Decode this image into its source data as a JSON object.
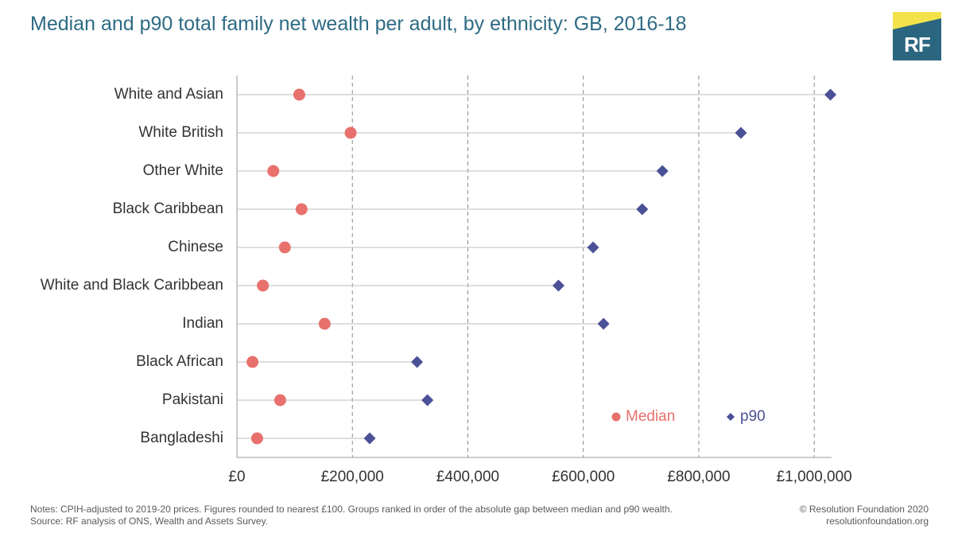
{
  "header": {
    "title": "Median and p90 total family net wealth per adult, by ethnicity: GB, 2016-18",
    "logo_text": "RF"
  },
  "colors": {
    "title": "#2e6b84",
    "median": "#e8716d",
    "p90": "#4a5196",
    "logo_bg": "#2b6680",
    "logo_accent": "#f4e24a"
  },
  "chart_data": {
    "type": "scatter",
    "categories": [
      "White and Asian",
      "White British",
      "Other White",
      "Black Caribbean",
      "Chinese",
      "White and Black Caribbean",
      "Indian",
      "Black African",
      "Pakistani",
      "Bangladeshi"
    ],
    "series": [
      {
        "name": "Median",
        "marker": "circle",
        "values": [
          108000,
          197000,
          63000,
          112000,
          83000,
          45000,
          152000,
          27000,
          75000,
          35000
        ]
      },
      {
        "name": "p90",
        "marker": "diamond",
        "values": [
          1028000,
          873000,
          737000,
          702000,
          617000,
          557000,
          635000,
          312000,
          330000,
          230000
        ]
      }
    ],
    "xlim": [
      0,
      1030000
    ],
    "x_ticks": [
      {
        "value": 0,
        "label": "£0"
      },
      {
        "value": 200000,
        "label": "£200,000"
      },
      {
        "value": 400000,
        "label": "£400,000"
      },
      {
        "value": 600000,
        "label": "£600,000"
      },
      {
        "value": 800000,
        "label": "£800,000"
      },
      {
        "value": 1000000,
        "label": "£1,000,000"
      }
    ],
    "grid": "vertical dashed",
    "legend_placement": "bottom-right"
  },
  "footer": {
    "notes": "Notes: CPIH-adjusted to 2019-20 prices. Figures rounded to nearest £100. Groups ranked in order of the absolute gap between median and p90 wealth.",
    "source": "Source: RF analysis of ONS, Wealth and Assets Survey.",
    "copyright": "© Resolution Foundation 2020",
    "website": "resolutionfoundation.org"
  }
}
